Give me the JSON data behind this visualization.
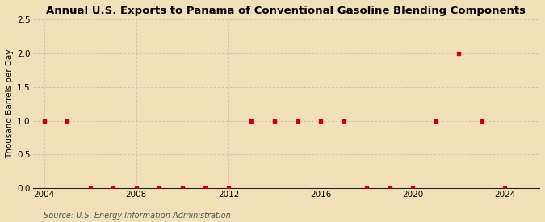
{
  "title": "Annual U.S. Exports to Panama of Conventional Gasoline Blending Components",
  "ylabel": "Thousand Barrels per Day",
  "source": "Source: U.S. Energy Information Administration",
  "years": [
    2004,
    2005,
    2006,
    2007,
    2008,
    2009,
    2010,
    2011,
    2012,
    2013,
    2014,
    2015,
    2016,
    2017,
    2018,
    2019,
    2020,
    2021,
    2022,
    2023,
    2024
  ],
  "values": [
    1.0,
    1.0,
    0.0,
    0.0,
    0.0,
    0.0,
    0.0,
    0.0,
    0.0,
    1.0,
    1.0,
    1.0,
    1.0,
    1.0,
    0.0,
    0.0,
    0.0,
    1.0,
    2.0,
    1.0,
    0.0
  ],
  "marker_color": "#cc0000",
  "marker_size": 3.5,
  "background_color": "#f2e0bb",
  "grid_color": "#bbbbbb",
  "axis_color": "#222222",
  "xlim": [
    2003.5,
    2025.5
  ],
  "ylim": [
    0.0,
    2.5
  ],
  "yticks": [
    0.0,
    0.5,
    1.0,
    1.5,
    2.0,
    2.5
  ],
  "xticks": [
    2004,
    2008,
    2012,
    2016,
    2020,
    2024
  ],
  "vgrid_years": [
    2004,
    2008,
    2012,
    2016,
    2020,
    2024
  ],
  "title_fontsize": 9.5,
  "label_fontsize": 7.5,
  "tick_fontsize": 7.5,
  "source_fontsize": 7.0
}
